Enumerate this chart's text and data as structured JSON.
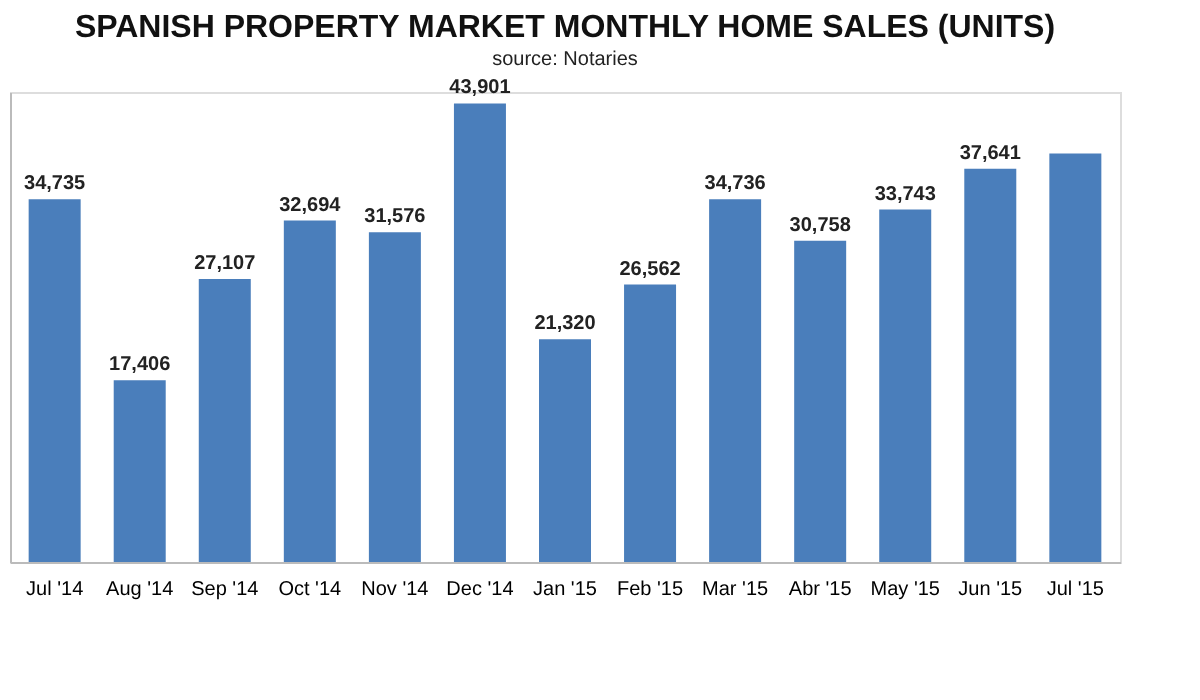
{
  "chart_data": {
    "type": "bar",
    "title": "SPANISH PROPERTY MARKET MONTHLY HOME SALES (UNITS)",
    "subtitle": "source: Notaries",
    "categories": [
      "Jul '14",
      "Aug '14",
      "Sep '14",
      "Oct '14",
      "Nov '14",
      "Dec '14",
      "Jan '15",
      "Feb '15",
      "Mar '15",
      "Abr '15",
      "May '15",
      "Jun '15",
      "Jul '15"
    ],
    "values": [
      34735,
      17406,
      27107,
      32694,
      31576,
      43901,
      21320,
      26562,
      34736,
      30758,
      33743,
      37641,
      39100
    ],
    "value_labels": [
      "34,735",
      "17,406",
      "27,107",
      "32,694",
      "31,576",
      "43,901",
      "21,320",
      "26,562",
      "34,736",
      "30,758",
      "33,743",
      "37,641",
      null
    ],
    "color": "#4a7ebb",
    "grid": false
  }
}
